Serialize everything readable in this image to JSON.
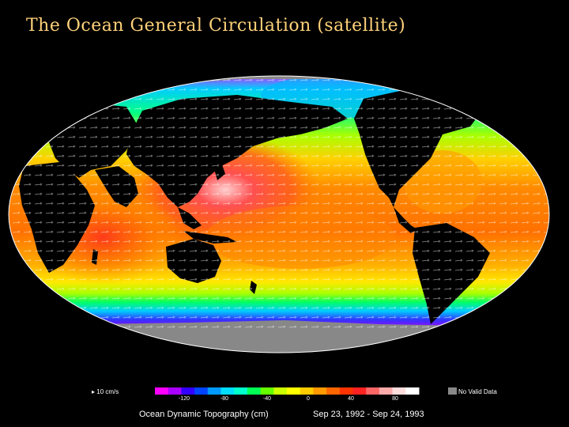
{
  "slide": {
    "title": "The Ocean General Circulation (satellite)"
  },
  "legend": {
    "arrow_label": "▸ 10 cm/s",
    "ticks": [
      "-120",
      "-80",
      "-40",
      "0",
      "40",
      "80"
    ],
    "quantity_label": "Ocean Dynamic Topography  (cm)",
    "date_range": "Sep 23, 1992 - Sep 24, 1993",
    "no_data_label": "No Valid Data",
    "no_data_color": "#888888",
    "colors": [
      "#ff00ff",
      "#aa00ff",
      "#3300ff",
      "#0044ff",
      "#0099ff",
      "#00ddff",
      "#00ffcc",
      "#00ff55",
      "#66ff00",
      "#ccff00",
      "#ffff00",
      "#ffcc00",
      "#ff9900",
      "#ff6600",
      "#ff3300",
      "#ff2222",
      "#ff6666",
      "#ffaaaa",
      "#ffdddd",
      "#ffffff"
    ]
  },
  "map": {
    "land_color": "#000000",
    "ice_color": "#888888"
  }
}
